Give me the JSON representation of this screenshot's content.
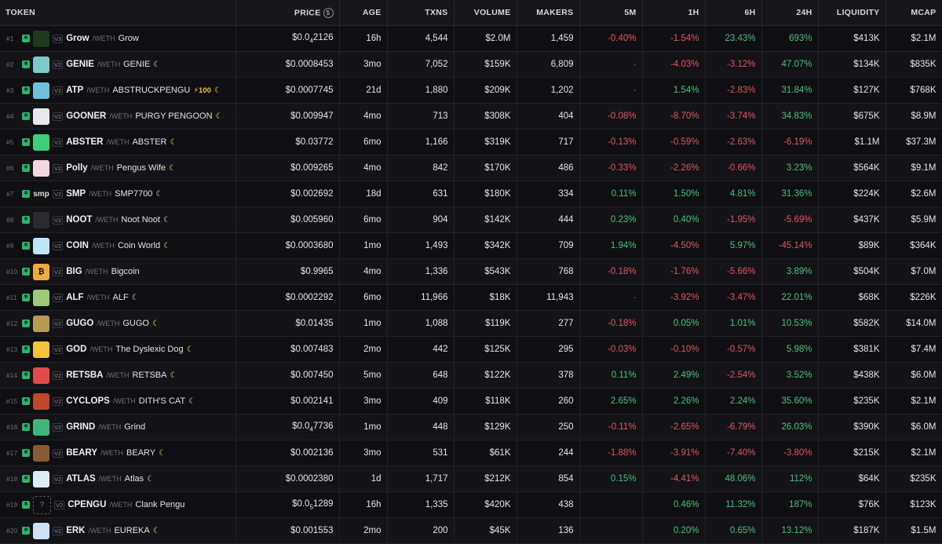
{
  "columns": {
    "token": "TOKEN",
    "price": "PRICE",
    "age": "AGE",
    "txns": "TXNS",
    "volume": "VOLUME",
    "makers": "MAKERS",
    "m5": "5M",
    "h1": "1H",
    "h6": "6H",
    "h24": "24H",
    "liquidity": "LIQUIDITY",
    "mcap": "MCAP"
  },
  "price_icon": "$",
  "colors": {
    "positive": "#4cc07a",
    "negative": "#e0575b",
    "chain": "#2fb36a"
  },
  "rows": [
    {
      "rank": "#1",
      "chain_icon": "abstract-chain-icon",
      "logo_color": "#1e3a1e",
      "logo_text": "",
      "version": "V3",
      "symbol": "Grow",
      "pair": "/WETH",
      "name": "Grow",
      "moon": false,
      "boost": "",
      "price": "$0.0",
      "price_sub": "4",
      "price_tail": "2126",
      "age": "16h",
      "txns": "4,544",
      "volume": "$2.0M",
      "makers": "1,459",
      "m5": "-0.40%",
      "h1": "-1.54%",
      "h6": "23.43%",
      "h24": "693%",
      "liquidity": "$413K",
      "mcap": "$2.1M"
    },
    {
      "rank": "#2",
      "chain_icon": "abstract-chain-icon",
      "logo_color": "#7ec8c8",
      "logo_text": "",
      "version": "V2",
      "symbol": "GENIE",
      "pair": "/WETH",
      "name": "GENIE",
      "moon": true,
      "boost": "",
      "price": "$0.0008453",
      "price_sub": "",
      "price_tail": "",
      "age": "3mo",
      "txns": "7,052",
      "volume": "$159K",
      "makers": "6,809",
      "m5": "-",
      "h1": "-4.03%",
      "h6": "-3.12%",
      "h24": "47.07%",
      "liquidity": "$134K",
      "mcap": "$835K"
    },
    {
      "rank": "#3",
      "chain_icon": "abstract-chain-icon",
      "logo_color": "#6fc2d9",
      "logo_text": "",
      "version": "V2",
      "symbol": "ATP",
      "pair": "/WETH",
      "name": "ABSTRUCKPENGU",
      "moon": true,
      "boost": "⚡100",
      "price": "$0.0007745",
      "price_sub": "",
      "price_tail": "",
      "age": "21d",
      "txns": "1,880",
      "volume": "$209K",
      "makers": "1,202",
      "m5": "-",
      "h1": "1.54%",
      "h6": "-2.83%",
      "h24": "31.84%",
      "liquidity": "$127K",
      "mcap": "$768K"
    },
    {
      "rank": "#4",
      "chain_icon": "abstract-chain-icon",
      "logo_color": "#e8e8ee",
      "logo_text": "",
      "version": "V2",
      "symbol": "GOONER",
      "pair": "/WETH",
      "name": "PURGY PENGOON",
      "moon": true,
      "boost": "",
      "price": "$0.009947",
      "price_sub": "",
      "price_tail": "",
      "age": "4mo",
      "txns": "713",
      "volume": "$308K",
      "makers": "404",
      "m5": "-0.08%",
      "h1": "-8.70%",
      "h6": "-3.74%",
      "h24": "34.83%",
      "liquidity": "$675K",
      "mcap": "$8.9M"
    },
    {
      "rank": "#5",
      "chain_icon": "abstract-chain-icon",
      "logo_color": "#3fcf7a",
      "logo_text": "",
      "version": "V2",
      "symbol": "ABSTER",
      "pair": "/WETH",
      "name": "ABSTER",
      "moon": true,
      "boost": "",
      "price": "$0.03772",
      "price_sub": "",
      "price_tail": "",
      "age": "6mo",
      "txns": "1,166",
      "volume": "$319K",
      "makers": "717",
      "m5": "-0.13%",
      "h1": "-0.59%",
      "h6": "-2.63%",
      "h24": "-6.19%",
      "liquidity": "$1.1M",
      "mcap": "$37.3M"
    },
    {
      "rank": "#6",
      "chain_icon": "abstract-chain-icon",
      "logo_color": "#f4d6e0",
      "logo_text": "",
      "version": "V2",
      "symbol": "Polly",
      "pair": "/WETH",
      "name": "Pengus Wife",
      "moon": true,
      "boost": "",
      "price": "$0.009265",
      "price_sub": "",
      "price_tail": "",
      "age": "4mo",
      "txns": "842",
      "volume": "$170K",
      "makers": "486",
      "m5": "-0.33%",
      "h1": "-2.26%",
      "h6": "-0.66%",
      "h24": "3.23%",
      "liquidity": "$564K",
      "mcap": "$9.1M"
    },
    {
      "rank": "#7",
      "chain_icon": "abstract-chain-icon",
      "logo_color": "#111111",
      "logo_text": "smp",
      "version": "V2",
      "symbol": "SMP",
      "pair": "/WETH",
      "name": "SMP7700",
      "moon": true,
      "boost": "",
      "price": "$0.002692",
      "price_sub": "",
      "price_tail": "",
      "age": "18d",
      "txns": "631",
      "volume": "$180K",
      "makers": "334",
      "m5": "0.11%",
      "h1": "1.50%",
      "h6": "4.81%",
      "h24": "31.36%",
      "liquidity": "$224K",
      "mcap": "$2.6M"
    },
    {
      "rank": "#8",
      "chain_icon": "abstract-chain-icon",
      "logo_color": "#2a2a30",
      "logo_text": "",
      "version": "V2",
      "symbol": "NOOT",
      "pair": "/WETH",
      "name": "Noot Noot",
      "moon": true,
      "boost": "",
      "price": "$0.005960",
      "price_sub": "",
      "price_tail": "",
      "age": "6mo",
      "txns": "904",
      "volume": "$142K",
      "makers": "444",
      "m5": "0.23%",
      "h1": "0.40%",
      "h6": "-1.95%",
      "h24": "-5.69%",
      "liquidity": "$437K",
      "mcap": "$5.9M"
    },
    {
      "rank": "#9",
      "chain_icon": "abstract-chain-icon",
      "logo_color": "#bfe6f5",
      "logo_text": "",
      "version": "V2",
      "symbol": "COIN",
      "pair": "/WETH",
      "name": "Coin World",
      "moon": true,
      "boost": "",
      "price": "$0.0003680",
      "price_sub": "",
      "price_tail": "",
      "age": "1mo",
      "txns": "1,493",
      "volume": "$342K",
      "makers": "709",
      "m5": "1.94%",
      "h1": "-4.50%",
      "h6": "5.97%",
      "h24": "-45.14%",
      "liquidity": "$89K",
      "mcap": "$364K"
    },
    {
      "rank": "#10",
      "chain_icon": "abstract-chain-icon",
      "logo_color": "#f2a93b",
      "logo_text": "₿",
      "version": "V2",
      "symbol": "BIG",
      "pair": "/WETH",
      "name": "Bigcoin",
      "moon": false,
      "boost": "",
      "price": "$0.9965",
      "price_sub": "",
      "price_tail": "",
      "age": "4mo",
      "txns": "1,336",
      "volume": "$543K",
      "makers": "768",
      "m5": "-0.18%",
      "h1": "-1.76%",
      "h6": "-5.66%",
      "h24": "3.89%",
      "liquidity": "$504K",
      "mcap": "$7.0M"
    },
    {
      "rank": "#11",
      "chain_icon": "abstract-chain-icon",
      "logo_color": "#9ec87a",
      "logo_text": "",
      "version": "V2",
      "symbol": "ALF",
      "pair": "/WETH",
      "name": "ALF",
      "moon": true,
      "boost": "",
      "price": "$0.0002292",
      "price_sub": "",
      "price_tail": "",
      "age": "6mo",
      "txns": "11,966",
      "volume": "$18K",
      "makers": "11,943",
      "m5": "-",
      "h1": "-3.92%",
      "h6": "-3.47%",
      "h24": "22.01%",
      "liquidity": "$68K",
      "mcap": "$226K"
    },
    {
      "rank": "#12",
      "chain_icon": "abstract-chain-icon",
      "logo_color": "#b89a52",
      "logo_text": "",
      "version": "V2",
      "symbol": "GUGO",
      "pair": "/WETH",
      "name": "GUGO",
      "moon": true,
      "boost": "",
      "price": "$0.01435",
      "price_sub": "",
      "price_tail": "",
      "age": "1mo",
      "txns": "1,088",
      "volume": "$119K",
      "makers": "277",
      "m5": "-0.18%",
      "h1": "0.05%",
      "h6": "1.01%",
      "h24": "10.53%",
      "liquidity": "$582K",
      "mcap": "$14.0M"
    },
    {
      "rank": "#13",
      "chain_icon": "abstract-chain-icon",
      "logo_color": "#f2c43a",
      "logo_text": "",
      "version": "V2",
      "symbol": "GOD",
      "pair": "/WETH",
      "name": "The Dyslexic Dog",
      "moon": true,
      "boost": "",
      "price": "$0.007483",
      "price_sub": "",
      "price_tail": "",
      "age": "2mo",
      "txns": "442",
      "volume": "$125K",
      "makers": "295",
      "m5": "-0.03%",
      "h1": "-0.10%",
      "h6": "-0.57%",
      "h24": "5.98%",
      "liquidity": "$381K",
      "mcap": "$7.4M"
    },
    {
      "rank": "#14",
      "chain_icon": "abstract-chain-icon",
      "logo_color": "#e34a4a",
      "logo_text": "",
      "version": "V2",
      "symbol": "RETSBA",
      "pair": "/WETH",
      "name": "RETSBA",
      "moon": true,
      "boost": "",
      "price": "$0.007450",
      "price_sub": "",
      "price_tail": "",
      "age": "5mo",
      "txns": "648",
      "volume": "$122K",
      "makers": "378",
      "m5": "0.11%",
      "h1": "2.49%",
      "h6": "-2.54%",
      "h24": "3.52%",
      "liquidity": "$438K",
      "mcap": "$6.0M"
    },
    {
      "rank": "#15",
      "chain_icon": "abstract-chain-icon",
      "logo_color": "#c2462a",
      "logo_text": "",
      "version": "V2",
      "symbol": "CYCLOPS",
      "pair": "/WETH",
      "name": "DITH'S CAT",
      "moon": true,
      "boost": "",
      "price": "$0.002141",
      "price_sub": "",
      "price_tail": "",
      "age": "3mo",
      "txns": "409",
      "volume": "$118K",
      "makers": "260",
      "m5": "2.65%",
      "h1": "2.26%",
      "h6": "2.24%",
      "h24": "35.60%",
      "liquidity": "$235K",
      "mcap": "$2.1M"
    },
    {
      "rank": "#16",
      "chain_icon": "abstract-chain-icon",
      "logo_color": "#3fb57c",
      "logo_text": "",
      "version": "V2",
      "symbol": "GRIND",
      "pair": "/WETH",
      "name": "Grind",
      "moon": false,
      "boost": "",
      "price": "$0.0",
      "price_sub": "4",
      "price_tail": "7736",
      "age": "1mo",
      "txns": "448",
      "volume": "$129K",
      "makers": "250",
      "m5": "-0.11%",
      "h1": "-2.65%",
      "h6": "-6.79%",
      "h24": "26.03%",
      "liquidity": "$390K",
      "mcap": "$6.0M"
    },
    {
      "rank": "#17",
      "chain_icon": "abstract-chain-icon",
      "logo_color": "#8a5a34",
      "logo_text": "",
      "version": "V2",
      "symbol": "BEARY",
      "pair": "/WETH",
      "name": "BEARY",
      "moon": true,
      "boost": "",
      "price": "$0.002136",
      "price_sub": "",
      "price_tail": "",
      "age": "3mo",
      "txns": "531",
      "volume": "$61K",
      "makers": "244",
      "m5": "-1.88%",
      "h1": "-3.91%",
      "h6": "-7.40%",
      "h24": "-3.80%",
      "liquidity": "$215K",
      "mcap": "$2.1M"
    },
    {
      "rank": "#18",
      "chain_icon": "abstract-chain-icon",
      "logo_color": "#d9eef5",
      "logo_text": "",
      "version": "V2",
      "symbol": "ATLAS",
      "pair": "/WETH",
      "name": "Atlas",
      "moon": true,
      "boost": "",
      "price": "$0.0002380",
      "price_sub": "",
      "price_tail": "",
      "age": "1d",
      "txns": "1,717",
      "volume": "$212K",
      "makers": "854",
      "m5": "0.15%",
      "h1": "-4.41%",
      "h6": "48.06%",
      "h24": "112%",
      "liquidity": "$64K",
      "mcap": "$235K"
    },
    {
      "rank": "#19",
      "chain_icon": "abstract-chain-icon",
      "logo_color": "",
      "logo_text": "?",
      "version": "V2",
      "symbol": "CPENGU",
      "pair": "/WETH",
      "name": "Clank Pengu",
      "moon": false,
      "boost": "",
      "price": "$0.0",
      "price_sub": "5",
      "price_tail": "1289",
      "age": "16h",
      "txns": "1,335",
      "volume": "$420K",
      "makers": "438",
      "m5": "",
      "h1": "0.46%",
      "h6": "11.32%",
      "h24": "187%",
      "liquidity": "$76K",
      "mcap": "$123K"
    },
    {
      "rank": "#20",
      "chain_icon": "abstract-chain-icon",
      "logo_color": "#cfe0f2",
      "logo_text": "",
      "version": "V2",
      "symbol": "ERK",
      "pair": "/WETH",
      "name": "EUREKA",
      "moon": true,
      "boost": "",
      "price": "$0.001553",
      "price_sub": "",
      "price_tail": "",
      "age": "2mo",
      "txns": "200",
      "volume": "$45K",
      "makers": "136",
      "m5": "",
      "h1": "0.20%",
      "h6": "0.65%",
      "h24": "13.12%",
      "liquidity": "$187K",
      "mcap": "$1.5M"
    }
  ]
}
